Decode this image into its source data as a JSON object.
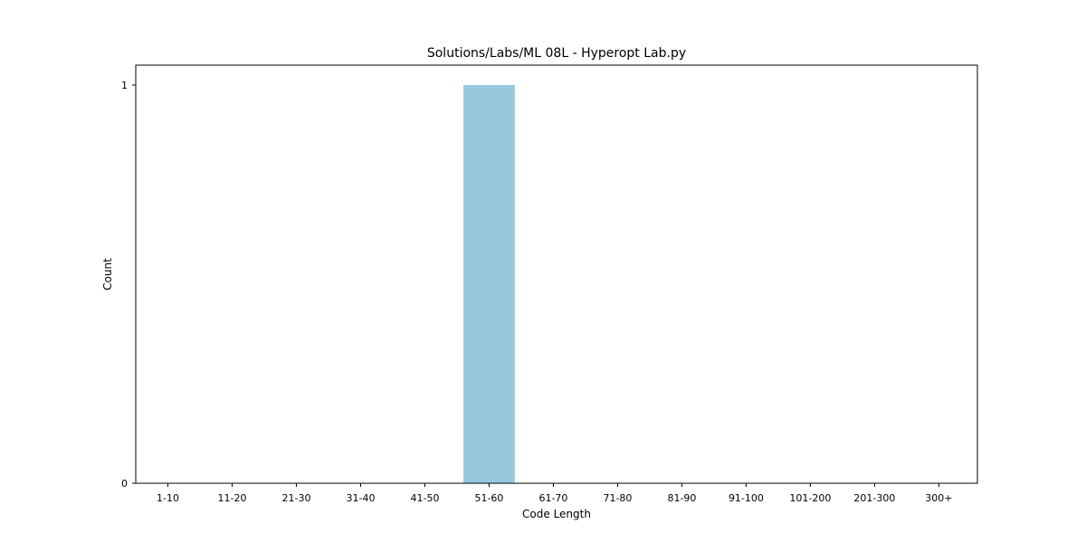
{
  "chart_data": {
    "type": "bar",
    "title": "Solutions/Labs/ML 08L - Hyperopt Lab.py",
    "xlabel": "Code Length",
    "ylabel": "Count",
    "categories": [
      "1-10",
      "11-20",
      "21-30",
      "31-40",
      "41-50",
      "51-60",
      "61-70",
      "71-80",
      "81-90",
      "91-100",
      "101-200",
      "201-300",
      "300+"
    ],
    "values": [
      0,
      0,
      0,
      0,
      0,
      1,
      0,
      0,
      0,
      0,
      0,
      0,
      0
    ],
    "ylim": [
      0,
      1.05
    ],
    "yticks": [
      0,
      1
    ],
    "grid": false,
    "bar_color": "#96c9de"
  }
}
